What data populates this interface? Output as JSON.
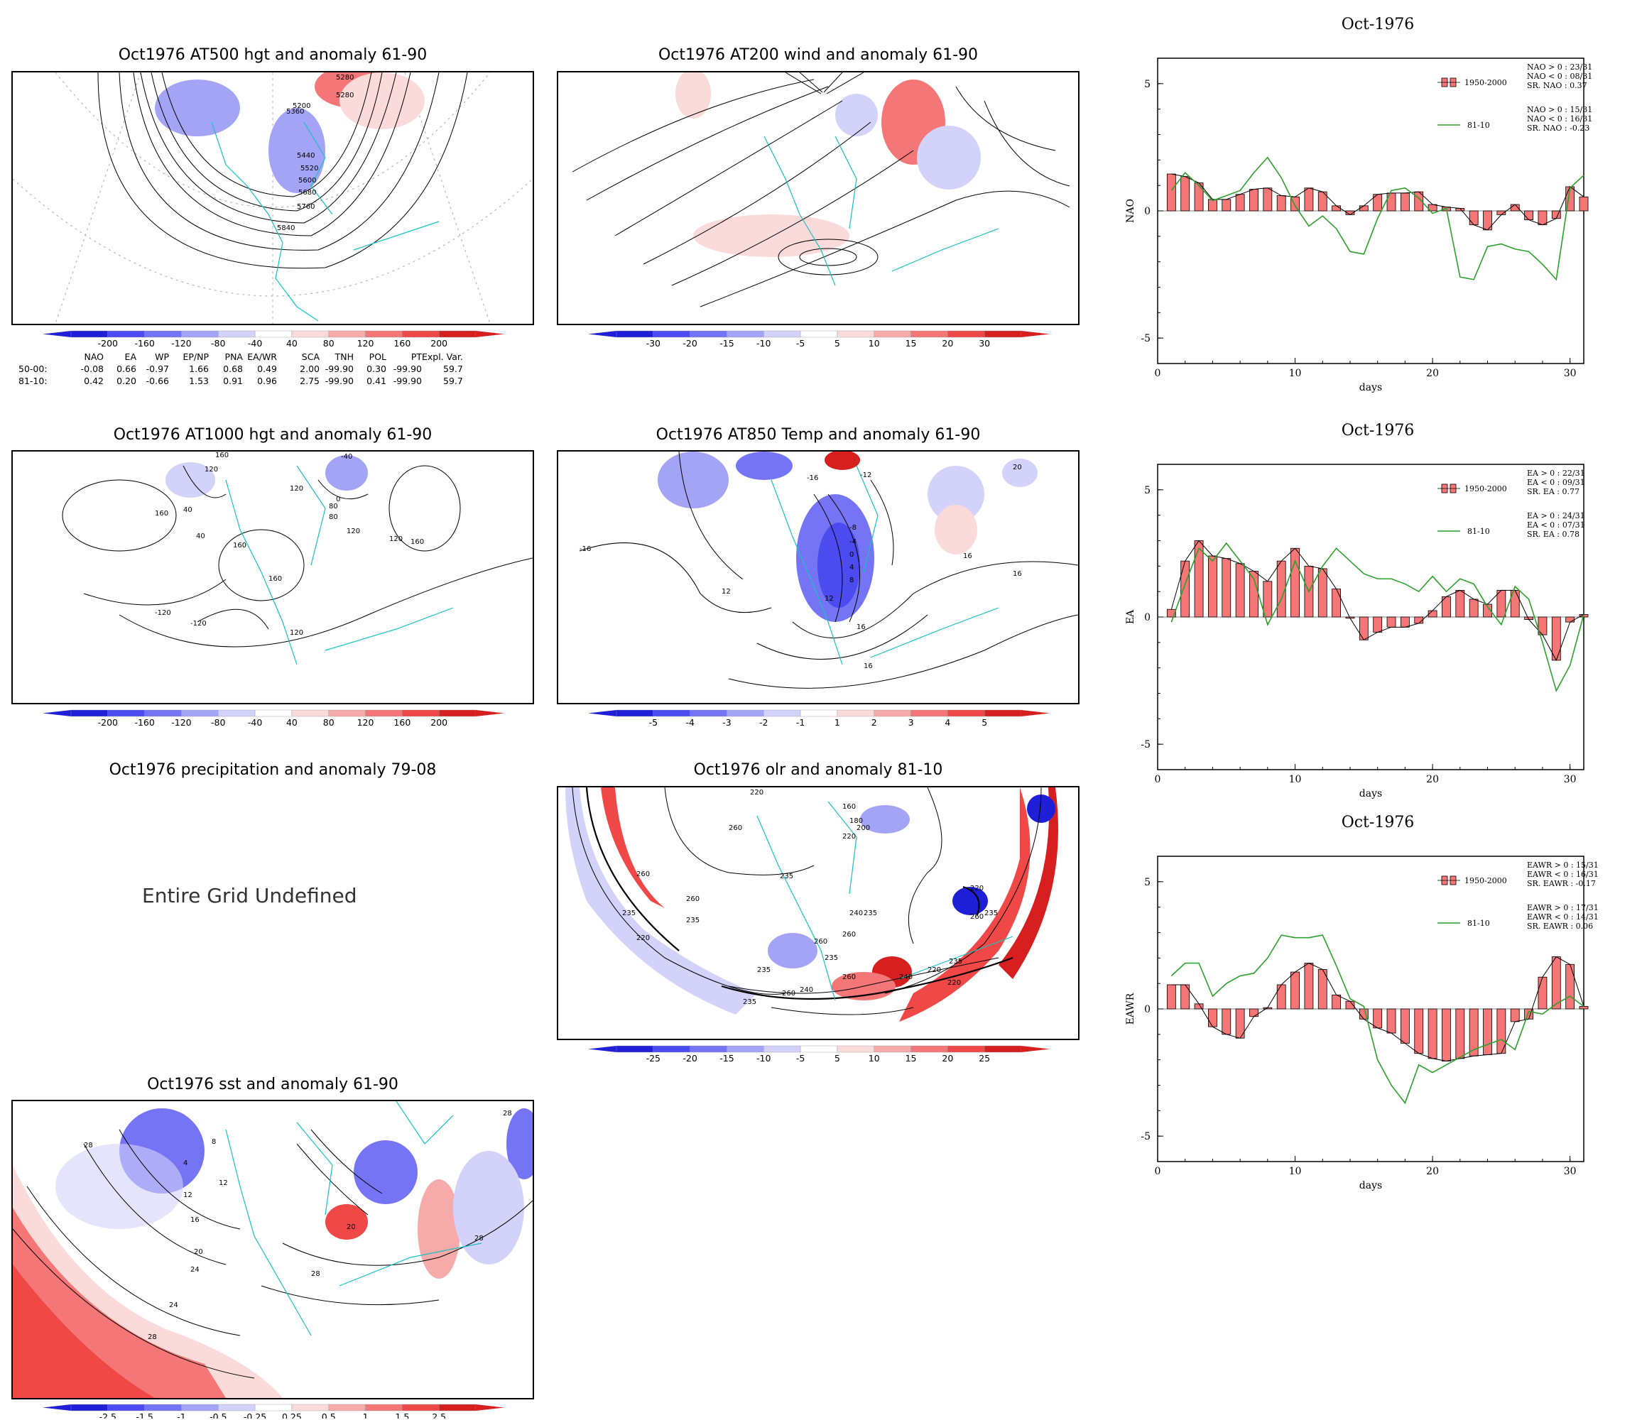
{
  "maps": [
    {
      "id": "m500",
      "title": "Oct1976 AT500 hgt and anomaly 61-90",
      "contour_labels": [
        "5280",
        "5360",
        "5200",
        "5280",
        "5440",
        "5520",
        "5600",
        "5680",
        "5760",
        "5840"
      ],
      "colorbar": [
        "-200",
        "-160",
        "-120",
        "-80",
        "-40",
        "40",
        "80",
        "120",
        "160",
        "200"
      ]
    },
    {
      "id": "m200",
      "title": "Oct1976 AT200 wind and anomaly 61-90",
      "contour_labels": [],
      "colorbar": [
        "-30",
        "-20",
        "-15",
        "-10",
        "-5",
        "5",
        "10",
        "15",
        "20",
        "30"
      ]
    },
    {
      "id": "m1000",
      "title": "Oct1976 AT1000 hgt and anomaly 61-90",
      "contour_labels": [
        "160",
        "120",
        "-40",
        "160",
        "40",
        "120",
        "80",
        "0",
        "80",
        "120",
        "40",
        "160",
        "160",
        "160",
        "120",
        "120",
        "-120",
        "-120"
      ],
      "colorbar": [
        "-200",
        "-160",
        "-120",
        "-80",
        "-40",
        "40",
        "80",
        "120",
        "160",
        "200"
      ]
    },
    {
      "id": "m850",
      "title": "Oct1976 AT850 Temp and anomaly 61-90",
      "contour_labels": [
        "20",
        "-16",
        "-12",
        "-16",
        "-8",
        "-4",
        "0",
        "4",
        "8",
        "12",
        "12",
        "16",
        "16",
        "16",
        "16"
      ],
      "colorbar": [
        "-5",
        "-4",
        "-3",
        "-2",
        "-1",
        "1",
        "2",
        "3",
        "4",
        "5"
      ]
    },
    {
      "id": "mprecip",
      "title": "Oct1976 precipitation and anomaly 79-08",
      "undefined_text": "Entire Grid Undefined"
    },
    {
      "id": "molr",
      "title": "Oct1976 olr and anomaly 81-10",
      "contour_labels": [
        "220",
        "160",
        "260",
        "180",
        "200",
        "220",
        "235",
        "235",
        "260",
        "260",
        "235",
        "220",
        "235",
        "240",
        "260",
        "260",
        "235",
        "260",
        "240",
        "235",
        "220",
        "235",
        "235",
        "240",
        "260",
        "220",
        "235",
        "260",
        "220"
      ],
      "colorbar": [
        "-25",
        "-20",
        "-15",
        "-10",
        "-5",
        "5",
        "10",
        "15",
        "20",
        "25"
      ]
    },
    {
      "id": "msst",
      "title": "Oct1976 sst and anomaly 61-90",
      "contour_labels": [
        "28",
        "12",
        "12",
        "16",
        "20",
        "24",
        "28",
        "24",
        "28",
        "28",
        "28",
        "4",
        "8",
        "20"
      ],
      "colorbar": [
        "-2.5",
        "-1.5",
        "-1",
        "-0.5",
        "-0.25",
        "0.25",
        "0.5",
        "1",
        "1.5",
        "2.5"
      ]
    }
  ],
  "colorbar_colors": {
    "neg": [
      "#1f1fd8",
      "#4b4bf0",
      "#7474f5",
      "#a4a4f7",
      "#d2d2fa"
    ],
    "pos": [
      "#fbdada",
      "#f7aaaa",
      "#f47676",
      "#f04747",
      "#d81f1f"
    ]
  },
  "stats": {
    "header": [
      "NAO",
      "EA",
      "WP",
      "EP/NP",
      "PNA",
      "EA/WR",
      "SCA",
      "TNH",
      "POL",
      "PT",
      "Expl. Var."
    ],
    "rows": [
      {
        "label": "50-00:",
        "values": [
          "-0.08",
          "0.66",
          "-0.97",
          "1.66",
          "0.68",
          "0.49",
          "2.00",
          "-99.90",
          "0.30",
          "-99.90",
          "59.7"
        ]
      },
      {
        "label": "81-10:",
        "values": [
          "0.42",
          "0.20",
          "-0.66",
          "1.53",
          "0.91",
          "0.96",
          "2.75",
          "-99.90",
          "0.41",
          "-99.90",
          "59.7"
        ]
      }
    ]
  },
  "chart_data": [
    {
      "type": "bar",
      "title": "Oct-1976",
      "xlabel": "days",
      "ylabel": "NAO",
      "xlim": [
        0,
        31
      ],
      "ylim": [
        -6,
        6
      ],
      "yticks": [
        -5,
        0,
        5
      ],
      "xticks": [
        0,
        10,
        20,
        30
      ],
      "legend": {
        "placement": "top-right",
        "block1": [
          "NAO > 0 : 23/31",
          "NAO < 0 : 08/31",
          "SR. NAO : 0.37"
        ],
        "block2": [
          "NAO > 0 : 15/31",
          "NAO < 0 : 16/31",
          "SR. NAO : -0.23"
        ]
      },
      "series": [
        {
          "name": "1950-2000",
          "kind": "bar",
          "color": "#f47676",
          "values": [
            1.45,
            1.35,
            1.1,
            0.45,
            0.45,
            0.65,
            0.85,
            0.9,
            0.6,
            0.55,
            0.9,
            0.75,
            0.2,
            -0.15,
            0.2,
            0.65,
            0.7,
            0.7,
            0.75,
            0.25,
            0.15,
            0.1,
            -0.55,
            -0.75,
            -0.15,
            0.25,
            -0.35,
            -0.55,
            -0.3,
            0.95,
            0.55
          ]
        },
        {
          "name": "81-10",
          "kind": "line",
          "color": "#2ca02c",
          "values": [
            0.8,
            1.5,
            1.0,
            0.4,
            0.6,
            0.8,
            1.5,
            2.1,
            1.3,
            0.2,
            -0.6,
            -0.2,
            -0.7,
            -1.6,
            -1.7,
            -0.3,
            0.8,
            0.9,
            0.5,
            -0.1,
            0.1,
            -2.6,
            -2.7,
            -1.4,
            -1.3,
            -1.5,
            -1.6,
            -2.1,
            -2.7,
            0.9,
            1.4
          ]
        }
      ]
    },
    {
      "type": "bar",
      "title": "Oct-1976",
      "xlabel": "days",
      "ylabel": "EA",
      "xlim": [
        0,
        31
      ],
      "ylim": [
        -6,
        6
      ],
      "yticks": [
        -5,
        0,
        5
      ],
      "xticks": [
        0,
        10,
        20,
        30
      ],
      "legend": {
        "placement": "top-right",
        "block1": [
          "EA > 0 : 22/31",
          "EA < 0 : 09/31",
          "SR. EA : 0.77"
        ],
        "block2": [
          "EA > 0 : 24/31",
          "EA < 0 : 07/31",
          "SR. EA : 0.78"
        ]
      },
      "series": [
        {
          "name": "1950-2000",
          "kind": "bar",
          "color": "#f47676",
          "values": [
            0.3,
            2.2,
            3.0,
            2.4,
            2.3,
            2.1,
            1.8,
            1.4,
            2.2,
            2.7,
            2.0,
            1.9,
            1.1,
            -0.05,
            -0.9,
            -0.6,
            -0.4,
            -0.4,
            -0.25,
            0.25,
            0.8,
            1.05,
            0.7,
            0.5,
            1.05,
            1.05,
            -0.1,
            -0.7,
            -1.7,
            -0.2,
            0.1
          ]
        },
        {
          "name": "81-10",
          "kind": "line",
          "color": "#2ca02c",
          "values": [
            -0.2,
            1.3,
            2.7,
            2.2,
            2.9,
            2.2,
            1.5,
            -0.3,
            0.7,
            2.2,
            1.0,
            2.0,
            2.7,
            2.2,
            1.7,
            1.5,
            1.5,
            1.3,
            1.0,
            1.6,
            1.0,
            1.5,
            1.3,
            0.4,
            -0.3,
            1.2,
            0.7,
            -1.0,
            -2.9,
            -1.9,
            0.1
          ]
        }
      ]
    },
    {
      "type": "bar",
      "title": "Oct-1976",
      "xlabel": "days",
      "ylabel": "EAWR",
      "xlim": [
        0,
        31
      ],
      "ylim": [
        -6,
        6
      ],
      "yticks": [
        -5,
        0,
        5
      ],
      "xticks": [
        0,
        10,
        20,
        30
      ],
      "legend": {
        "placement": "top-right",
        "block1": [
          "EAWR > 0 : 15/31",
          "EAWR < 0 : 16/31",
          "SR. EAWR : -0.17"
        ],
        "block2": [
          "EAWR > 0 : 17/31",
          "EAWR < 0 : 14/31",
          "SR. EAWR : 0.06"
        ]
      },
      "series": [
        {
          "name": "1950-2000",
          "kind": "bar",
          "color": "#f47676",
          "values": [
            0.95,
            0.95,
            0.2,
            -0.7,
            -1.0,
            -1.15,
            -0.3,
            0.05,
            0.95,
            1.45,
            1.8,
            1.55,
            0.55,
            0.3,
            -0.4,
            -0.75,
            -0.95,
            -1.35,
            -1.75,
            -1.95,
            -2.05,
            -1.95,
            -1.85,
            -1.8,
            -1.75,
            -0.5,
            -0.4,
            1.25,
            2.05,
            1.75,
            0.1
          ]
        },
        {
          "name": "81-10",
          "kind": "line",
          "color": "#2ca02c",
          "values": [
            1.3,
            1.8,
            1.8,
            0.5,
            1.0,
            1.3,
            1.4,
            2.0,
            2.9,
            2.8,
            2.8,
            2.9,
            1.7,
            0.4,
            0.1,
            -2.0,
            -3.0,
            -3.7,
            -2.2,
            -2.5,
            -2.2,
            -1.9,
            -1.6,
            -1.4,
            -1.2,
            -1.6,
            -0.1,
            -0.2,
            0.2,
            0.5,
            0.1
          ]
        }
      ]
    }
  ]
}
